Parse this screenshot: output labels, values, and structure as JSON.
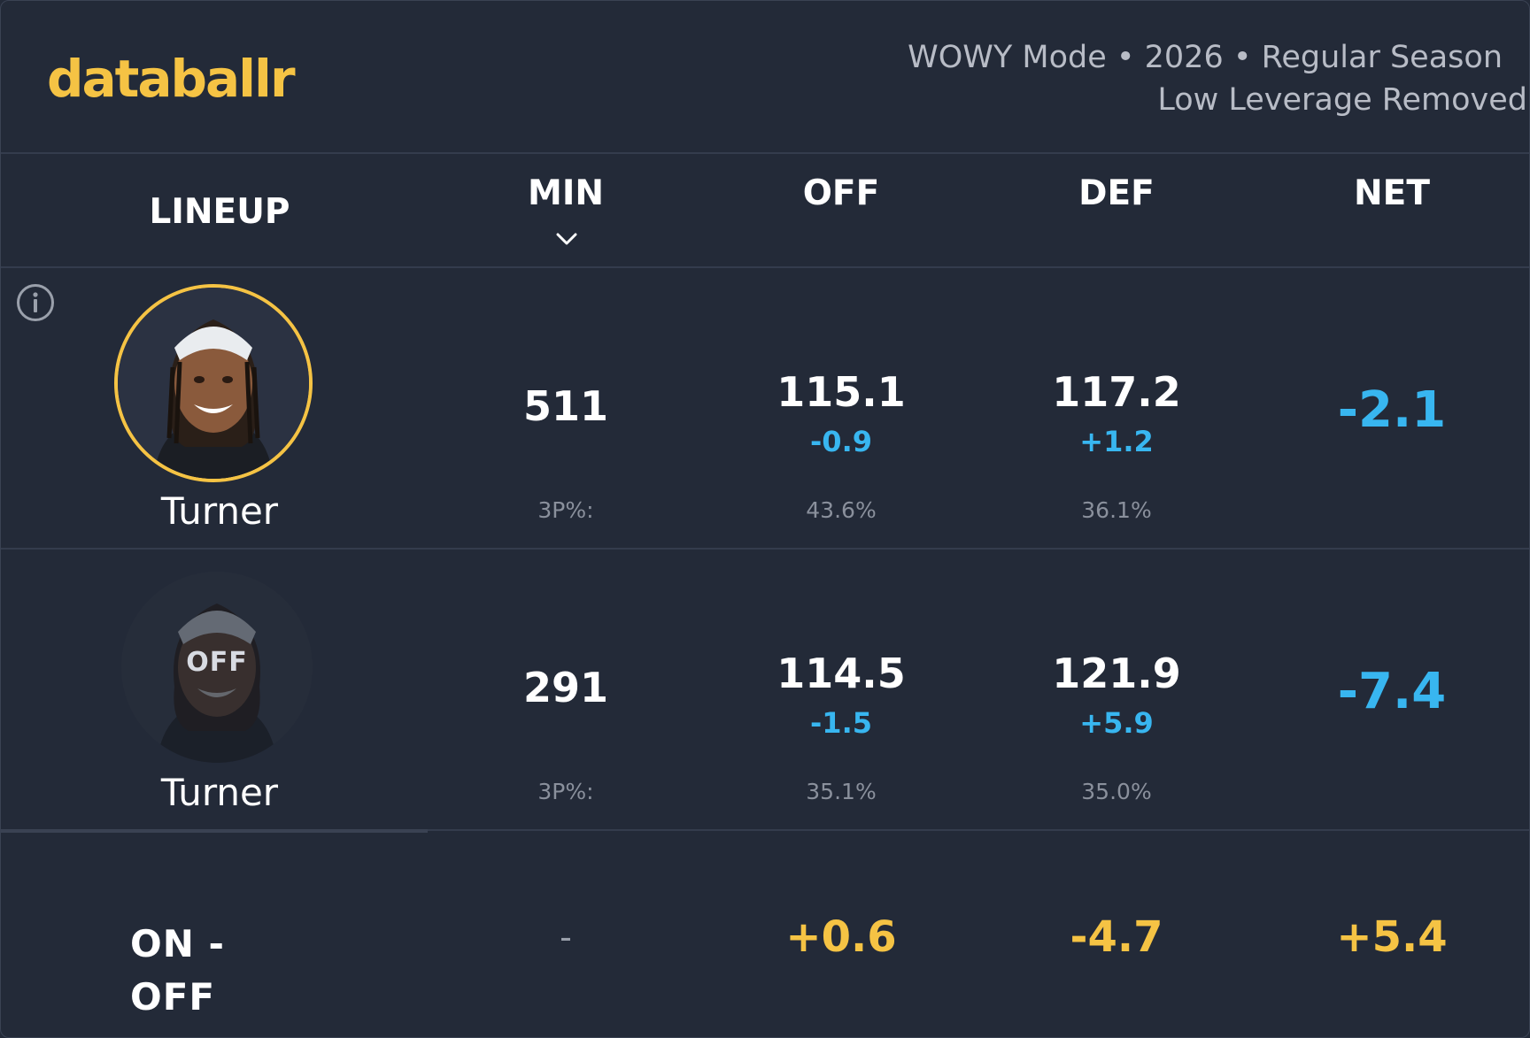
{
  "brand": {
    "logo": "databallr",
    "accent": "#f5c344"
  },
  "meta": {
    "line1": "WOWY Mode • 2026 • Regular Season",
    "line2": "Low Leverage Removed"
  },
  "columns": {
    "lineup": "LINEUP",
    "min": "MIN",
    "off": "OFF",
    "def": "DEF",
    "net": "NET",
    "sort_icon": "chevron-down-icon"
  },
  "rows": [
    {
      "state": "on",
      "player": "Turner",
      "min": "511",
      "off": "115.1",
      "off_delta": "-0.9",
      "def": "117.2",
      "def_delta": "+1.2",
      "net": "-2.1",
      "threep_label": "3P%:",
      "off_3p": "43.6%",
      "def_3p": "36.1%"
    },
    {
      "state": "off",
      "off_badge": "OFF",
      "player": "Turner",
      "min": "291",
      "off": "114.5",
      "off_delta": "-1.5",
      "def": "121.9",
      "def_delta": "+5.9",
      "net": "-7.4",
      "threep_label": "3P%:",
      "off_3p": "35.1%",
      "def_3p": "35.0%"
    }
  ],
  "summary": {
    "label_line1": "ON -",
    "label_line2": "OFF",
    "min": "-",
    "off": "+0.6",
    "def": "-4.7",
    "net": "+5.4"
  },
  "colors": {
    "delta_blue": "#38b6f0",
    "gold": "#f5c344",
    "bg": "#232a38"
  }
}
